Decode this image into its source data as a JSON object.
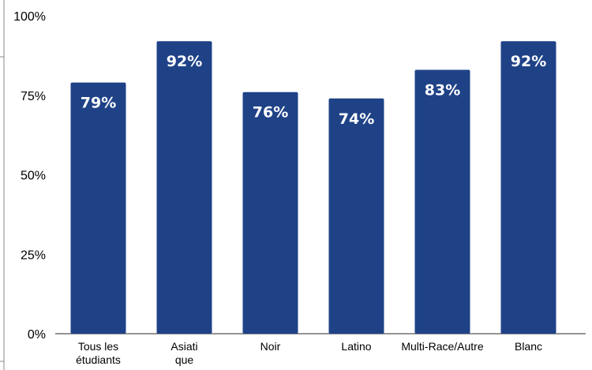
{
  "chart_data": {
    "type": "bar",
    "title": "",
    "xlabel": "",
    "ylabel": "",
    "categories": [
      [
        "Tous les",
        "étudiants"
      ],
      [
        "Asiati",
        "que"
      ],
      [
        "Noir"
      ],
      [
        "Latino"
      ],
      [
        "Multi-Race/Autre"
      ],
      [
        "Blanc"
      ]
    ],
    "values": [
      79,
      92,
      76,
      74,
      83,
      92
    ],
    "data_labels": [
      "79%",
      "92%",
      "76%",
      "74%",
      "83%",
      "92%"
    ],
    "ylim": [
      0,
      100
    ],
    "yticks": [
      0,
      25,
      50,
      75,
      100
    ],
    "ytick_labels": [
      "0%",
      "25%",
      "50%",
      "75%",
      "100%"
    ],
    "grid": false,
    "legend": "none",
    "colors": {
      "bar": "#1f4287",
      "data_label": "#ffffff",
      "axis": "#555555",
      "text": "#000000"
    }
  }
}
